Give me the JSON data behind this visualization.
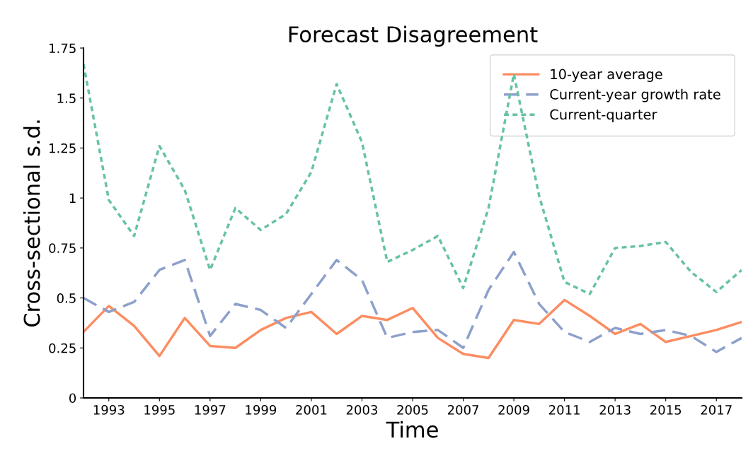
{
  "chart_data": {
    "type": "line",
    "title": "Forecast Disagreement",
    "xlabel": "Time",
    "ylabel": "Cross-sectional s.d.",
    "x": [
      1992,
      1993,
      1994,
      1995,
      1996,
      1997,
      1998,
      1999,
      2000,
      2001,
      2002,
      2003,
      2004,
      2005,
      2006,
      2007,
      2008,
      2009,
      2010,
      2011,
      2012,
      2013,
      2014,
      2015,
      2016,
      2017,
      2018
    ],
    "series": [
      {
        "name": "10-year average",
        "color": "#fc8d62",
        "line_style": "solid",
        "values": [
          0.33,
          0.46,
          0.36,
          0.21,
          0.4,
          0.26,
          0.25,
          0.34,
          0.4,
          0.43,
          0.32,
          0.41,
          0.39,
          0.45,
          0.3,
          0.22,
          0.2,
          0.39,
          0.37,
          0.49,
          0.41,
          0.32,
          0.37,
          0.28,
          0.31,
          0.34,
          0.38
        ]
      },
      {
        "name": "Current-year growth rate",
        "color": "#8da0cb",
        "line_style": "dashed",
        "values": [
          0.5,
          0.43,
          0.48,
          0.64,
          0.69,
          0.31,
          0.47,
          0.44,
          0.35,
          0.52,
          0.69,
          0.59,
          0.3,
          0.33,
          0.34,
          0.25,
          0.54,
          0.73,
          0.47,
          0.33,
          0.28,
          0.35,
          0.32,
          0.34,
          0.31,
          0.23,
          0.3
        ]
      },
      {
        "name": "Current-quarter",
        "color": "#66c2a5",
        "line_style": "dotted",
        "values": [
          1.67,
          0.99,
          0.81,
          1.26,
          1.04,
          0.64,
          0.95,
          0.84,
          0.92,
          1.13,
          1.57,
          1.28,
          0.68,
          0.74,
          0.81,
          0.55,
          0.95,
          1.62,
          1.01,
          0.58,
          0.52,
          0.75,
          0.76,
          0.78,
          0.63,
          0.53,
          0.64
        ]
      }
    ],
    "xlim": [
      1992,
      2018
    ],
    "xticks": [
      1993,
      1995,
      1997,
      1999,
      2001,
      2003,
      2005,
      2007,
      2009,
      2011,
      2013,
      2015,
      2017
    ],
    "ylim": [
      0,
      1.75
    ],
    "yticks": [
      0,
      0.25,
      0.5,
      0.75,
      1,
      1.25,
      1.5,
      1.75
    ],
    "grid": false,
    "legend": "top right",
    "marker": "none"
  }
}
